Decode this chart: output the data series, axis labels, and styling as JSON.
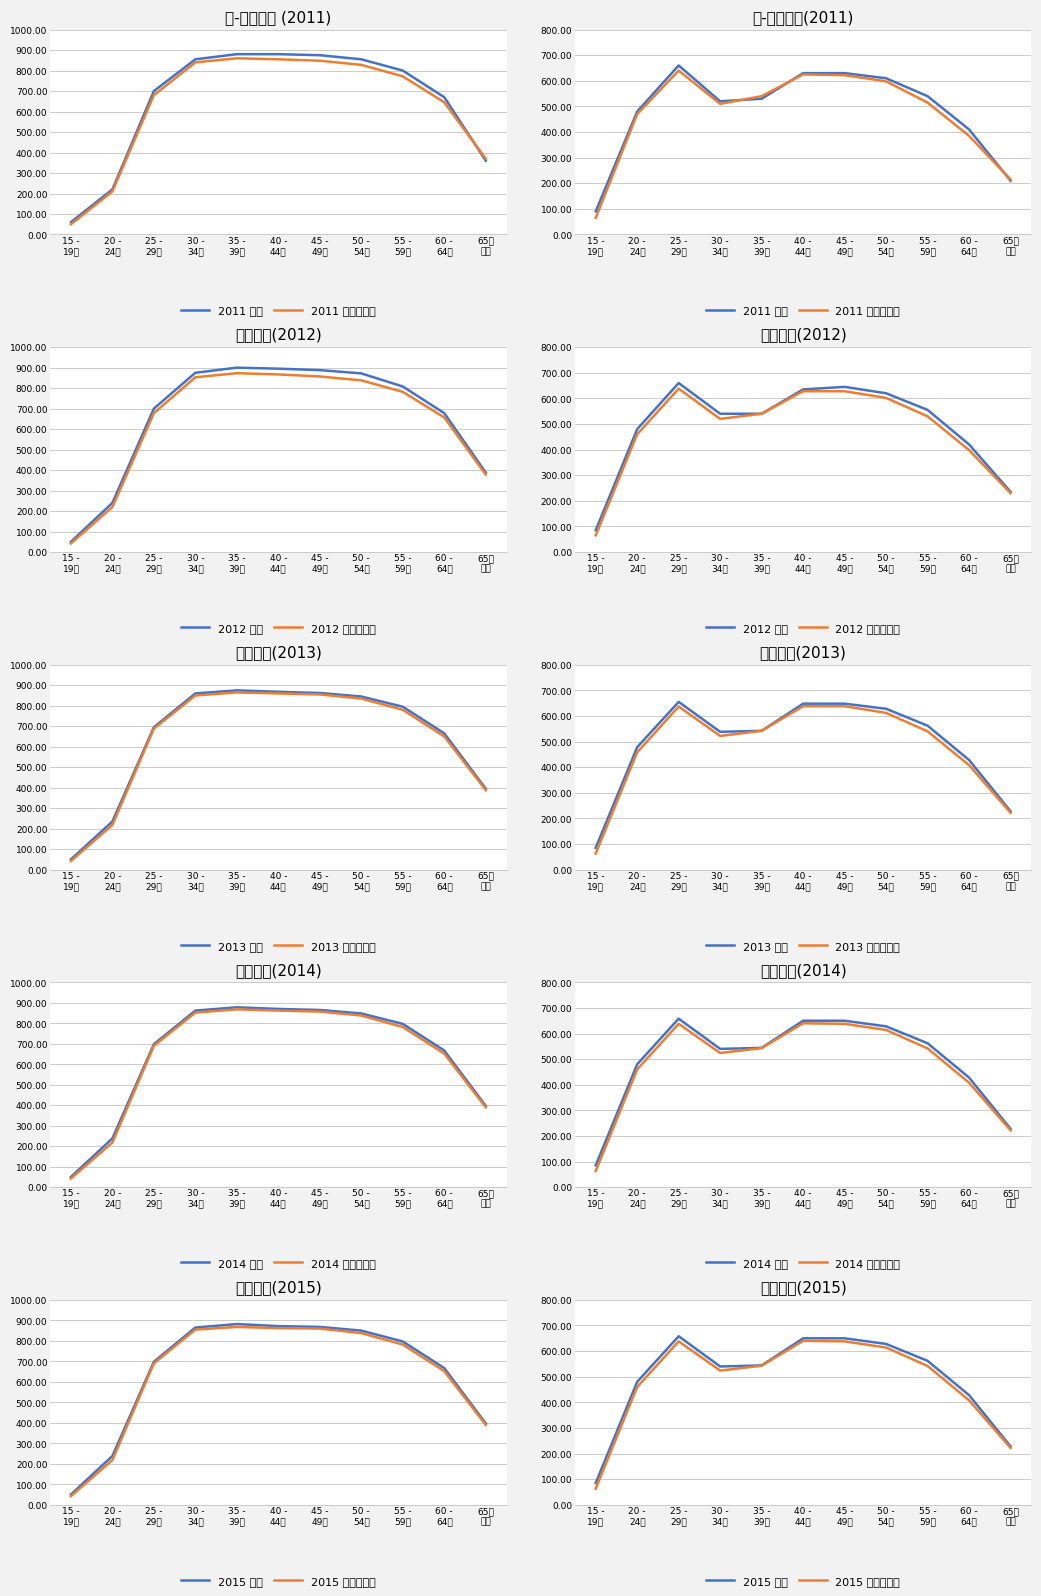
{
  "x_labels": [
    "15 -\n19세",
    "20 -\n24세",
    "25 -\n29세",
    "30 -\n34세",
    "35 -\n39세",
    "40 -\n44세",
    "45 -\n49세",
    "50 -\n54세",
    "55 -\n59세",
    "60 -\n64세",
    "65세\n이상"
  ],
  "charts": [
    {
      "title": "낙-조취업율 (2011)",
      "ylim": [
        0,
        1000
      ],
      "yticks": [
        0,
        100,
        200,
        300,
        400,
        500,
        600,
        700,
        800,
        900,
        1000
      ],
      "stat": [
        60,
        220,
        700,
        855,
        880,
        880,
        875,
        855,
        800,
        670,
        360
      ],
      "sim": [
        50,
        210,
        680,
        840,
        860,
        855,
        848,
        828,
        772,
        645,
        370
      ],
      "legend_year": "2011",
      "stat_color": "#4472c4",
      "sim_color": "#ed7d31"
    },
    {
      "title": "여-조취업율(2011)",
      "ylim": [
        0,
        800
      ],
      "yticks": [
        0,
        100,
        200,
        300,
        400,
        500,
        600,
        700,
        800
      ],
      "stat": [
        90,
        480,
        660,
        520,
        530,
        630,
        630,
        610,
        540,
        410,
        210
      ],
      "sim": [
        65,
        470,
        640,
        510,
        540,
        625,
        622,
        598,
        515,
        385,
        215
      ],
      "legend_year": "2011",
      "stat_color": "#4472c4",
      "sim_color": "#ed7d31"
    },
    {
      "title": "조취업율(2012)",
      "ylim": [
        0,
        1000
      ],
      "yticks": [
        0,
        100,
        200,
        300,
        400,
        500,
        600,
        700,
        800,
        900,
        1000
      ],
      "stat": [
        50,
        240,
        700,
        875,
        900,
        895,
        888,
        872,
        808,
        678,
        388
      ],
      "sim": [
        42,
        220,
        678,
        853,
        873,
        867,
        857,
        838,
        782,
        657,
        378
      ],
      "legend_year": "2012",
      "stat_color": "#4472c4",
      "sim_color": "#ed7d31"
    },
    {
      "title": "조취업율(2012)",
      "ylim": [
        0,
        800
      ],
      "yticks": [
        0,
        100,
        200,
        300,
        400,
        500,
        600,
        700,
        800
      ],
      "stat": [
        85,
        480,
        660,
        540,
        540,
        635,
        645,
        620,
        555,
        420,
        235
      ],
      "sim": [
        65,
        460,
        638,
        520,
        540,
        628,
        628,
        602,
        530,
        398,
        230
      ],
      "legend_year": "2012",
      "stat_color": "#4472c4",
      "sim_color": "#ed7d31"
    },
    {
      "title": "조취업율(2013)",
      "ylim": [
        0,
        1000
      ],
      "yticks": [
        0,
        100,
        200,
        300,
        400,
        500,
        600,
        700,
        800,
        900,
        1000
      ],
      "stat": [
        50,
        235,
        695,
        860,
        875,
        868,
        862,
        845,
        795,
        665,
        395
      ],
      "sim": [
        42,
        218,
        688,
        850,
        865,
        860,
        855,
        835,
        780,
        650,
        388
      ],
      "legend_year": "2013",
      "stat_color": "#4472c4",
      "sim_color": "#ed7d31"
    },
    {
      "title": "조취업율(2013)",
      "ylim": [
        0,
        800
      ],
      "yticks": [
        0,
        100,
        200,
        300,
        400,
        500,
        600,
        700,
        800
      ],
      "stat": [
        85,
        478,
        655,
        538,
        542,
        648,
        648,
        628,
        562,
        428,
        228
      ],
      "sim": [
        63,
        458,
        637,
        522,
        542,
        638,
        638,
        612,
        540,
        408,
        222
      ],
      "legend_year": "2013",
      "stat_color": "#4472c4",
      "sim_color": "#ed7d31"
    },
    {
      "title": "조취업율(2014)",
      "ylim": [
        0,
        1000
      ],
      "yticks": [
        0,
        100,
        200,
        300,
        400,
        500,
        600,
        700,
        800,
        900,
        1000
      ],
      "stat": [
        50,
        238,
        698,
        862,
        878,
        870,
        865,
        848,
        797,
        667,
        397
      ],
      "sim": [
        42,
        218,
        690,
        852,
        868,
        862,
        857,
        838,
        782,
        652,
        390
      ],
      "legend_year": "2014",
      "stat_color": "#4472c4",
      "sim_color": "#ed7d31"
    },
    {
      "title": "조취업율(2014)",
      "ylim": [
        0,
        800
      ],
      "yticks": [
        0,
        100,
        200,
        300,
        400,
        500,
        600,
        700,
        800
      ],
      "stat": [
        85,
        480,
        658,
        540,
        544,
        650,
        650,
        628,
        562,
        428,
        228
      ],
      "sim": [
        63,
        460,
        638,
        524,
        543,
        640,
        638,
        614,
        542,
        408,
        222
      ],
      "legend_year": "2014",
      "stat_color": "#4472c4",
      "sim_color": "#ed7d31"
    },
    {
      "title": "조취업율(2015)",
      "ylim": [
        0,
        1000
      ],
      "yticks": [
        0,
        100,
        200,
        300,
        400,
        500,
        600,
        700,
        800,
        900,
        1000
      ],
      "stat": [
        50,
        238,
        698,
        865,
        882,
        872,
        868,
        850,
        797,
        667,
        397
      ],
      "sim": [
        42,
        218,
        690,
        855,
        868,
        862,
        860,
        838,
        782,
        652,
        390
      ],
      "legend_year": "2015",
      "stat_color": "#4472c4",
      "sim_color": "#ed7d31"
    },
    {
      "title": "조취업율(2015)",
      "ylim": [
        0,
        800
      ],
      "yticks": [
        0,
        100,
        200,
        300,
        400,
        500,
        600,
        700,
        800
      ],
      "stat": [
        85,
        480,
        658,
        540,
        544,
        650,
        650,
        628,
        562,
        428,
        228
      ],
      "sim": [
        63,
        460,
        638,
        524,
        543,
        640,
        638,
        614,
        542,
        408,
        222
      ],
      "legend_year": "2015",
      "stat_color": "#4472c4",
      "sim_color": "#ed7d31"
    }
  ],
  "background_color": "#f2f2f2",
  "plot_bg_color": "#ffffff",
  "grid_color": "#cccccc",
  "line_width": 1.8,
  "title_fontsize": 11,
  "tick_fontsize": 6.5,
  "legend_fontsize": 8
}
